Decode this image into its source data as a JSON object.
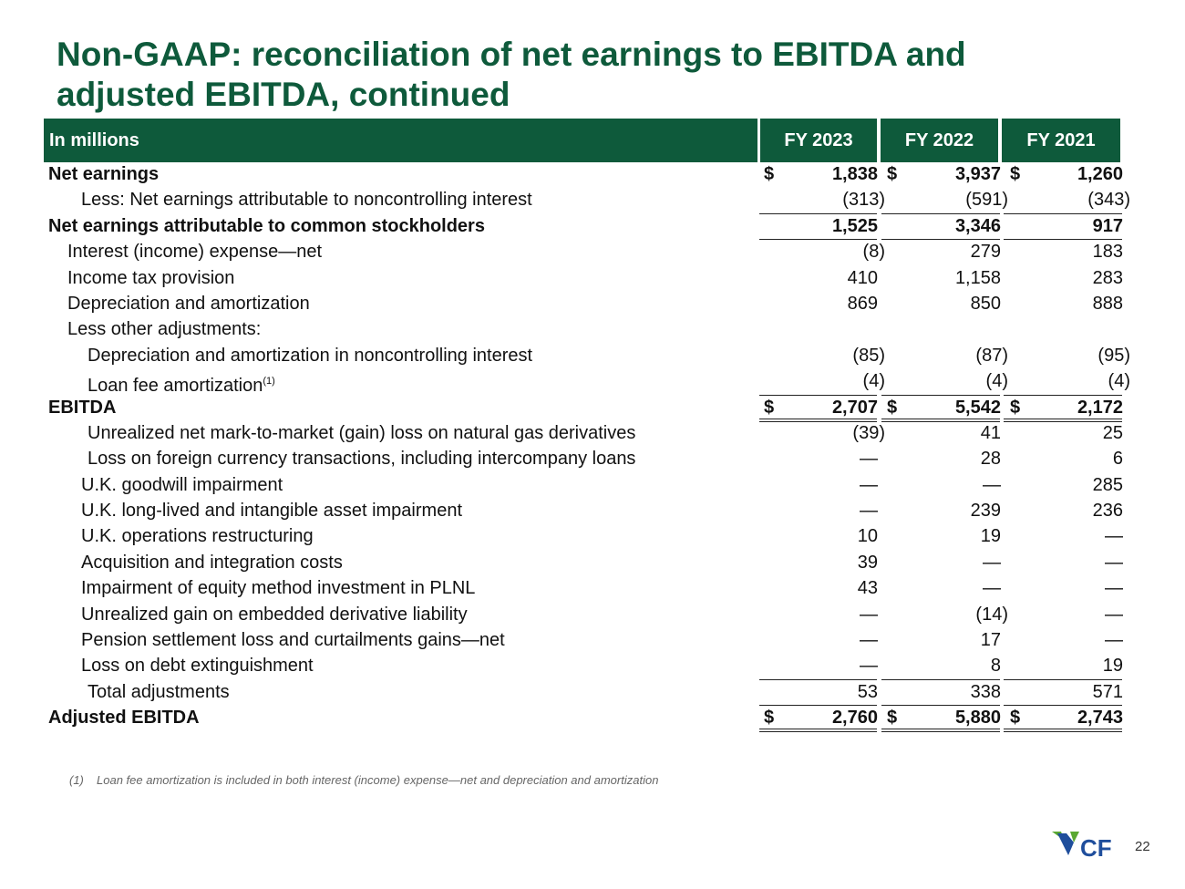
{
  "title": "Non-GAAP: reconciliation of net earnings to EBITDA and adjusted EBITDA, continued",
  "header": {
    "label": "In millions",
    "columns": [
      "FY 2023",
      "FY 2022",
      "FY 2021"
    ]
  },
  "rows": [
    {
      "label": "Net earnings",
      "indent": 0,
      "bold": true,
      "currency": true,
      "values": [
        "1,838",
        "3,937",
        "1,260"
      ]
    },
    {
      "label": "Less: Net earnings attributable to noncontrolling interest",
      "indent": 2,
      "values": [
        "(313)",
        "(591)",
        "(343)"
      ]
    },
    {
      "label": "Net earnings attributable to common stockholders",
      "indent": 0,
      "bold": true,
      "rule_above": true,
      "values": [
        "1,525",
        "3,346",
        "917"
      ]
    },
    {
      "label": "Interest (income) expense—net",
      "indent": 1,
      "rule_above": true,
      "values": [
        "(8)",
        "279",
        "183"
      ]
    },
    {
      "label": "Income tax provision",
      "indent": 1,
      "values": [
        "410",
        "1,158",
        "283"
      ]
    },
    {
      "label": "Depreciation and amortization",
      "indent": 1,
      "values": [
        "869",
        "850",
        "888"
      ]
    },
    {
      "label": "Less other adjustments:",
      "indent": 1,
      "values": [
        "",
        "",
        ""
      ]
    },
    {
      "label": "Depreciation and amortization in noncontrolling interest",
      "indent": 3,
      "values": [
        "(85)",
        "(87)",
        "(95)"
      ]
    },
    {
      "label": "Loan fee amortization",
      "sup": "(1)",
      "indent": 3,
      "values": [
        "(4)",
        "(4)",
        "(4)"
      ]
    },
    {
      "label": "EBITDA",
      "indent": 0,
      "bold": true,
      "currency": true,
      "rule_above": true,
      "rule_below": "double",
      "values": [
        "2,707",
        "5,542",
        "2,172"
      ]
    },
    {
      "label": "Unrealized net mark-to-market (gain) loss on natural gas derivatives",
      "indent": 3,
      "values": [
        "(39)",
        "41",
        "25"
      ]
    },
    {
      "label": "Loss on foreign currency transactions, including intercompany loans",
      "indent": 3,
      "values": [
        "—",
        "28",
        "6"
      ]
    },
    {
      "label": "U.K. goodwill impairment",
      "indent": 2,
      "values": [
        "—",
        "—",
        "285"
      ]
    },
    {
      "label": "U.K. long-lived and intangible asset impairment",
      "indent": 2,
      "values": [
        "—",
        "239",
        "236"
      ]
    },
    {
      "label": "U.K. operations restructuring",
      "indent": 2,
      "values": [
        "10",
        "19",
        "—"
      ]
    },
    {
      "label": "Acquisition and integration costs",
      "indent": 2,
      "values": [
        "39",
        "—",
        "—"
      ]
    },
    {
      "label": "Impairment of equity method investment in PLNL",
      "indent": 2,
      "values": [
        "43",
        "—",
        "—"
      ]
    },
    {
      "label": "Unrealized gain on embedded derivative liability",
      "indent": 2,
      "values": [
        "—",
        "(14)",
        "—"
      ]
    },
    {
      "label": "Pension settlement loss and curtailments gains—net",
      "indent": 2,
      "values": [
        "—",
        "17",
        "—"
      ]
    },
    {
      "label": "Loss on debt extinguishment",
      "indent": 2,
      "values": [
        "—",
        "8",
        "19"
      ]
    },
    {
      "label": "Total adjustments",
      "indent": 3,
      "rule_above": true,
      "values": [
        "53",
        "338",
        "571"
      ]
    },
    {
      "label": "Adjusted EBITDA",
      "indent": 0,
      "bold": true,
      "currency": true,
      "rule_above": true,
      "rule_below": "double",
      "values": [
        "2,760",
        "5,880",
        "2,743"
      ]
    }
  ],
  "currency_symbol": "$",
  "footnote": {
    "mark": "(1)",
    "text": "Loan fee amortization is included in both interest (income) expense—net and depreciation and amortization"
  },
  "logo_text": "CF",
  "page_number": "22",
  "colors": {
    "brand_green": "#0e5a3b",
    "logo_blue": "#1f4e9c",
    "logo_green": "#5aa832"
  }
}
